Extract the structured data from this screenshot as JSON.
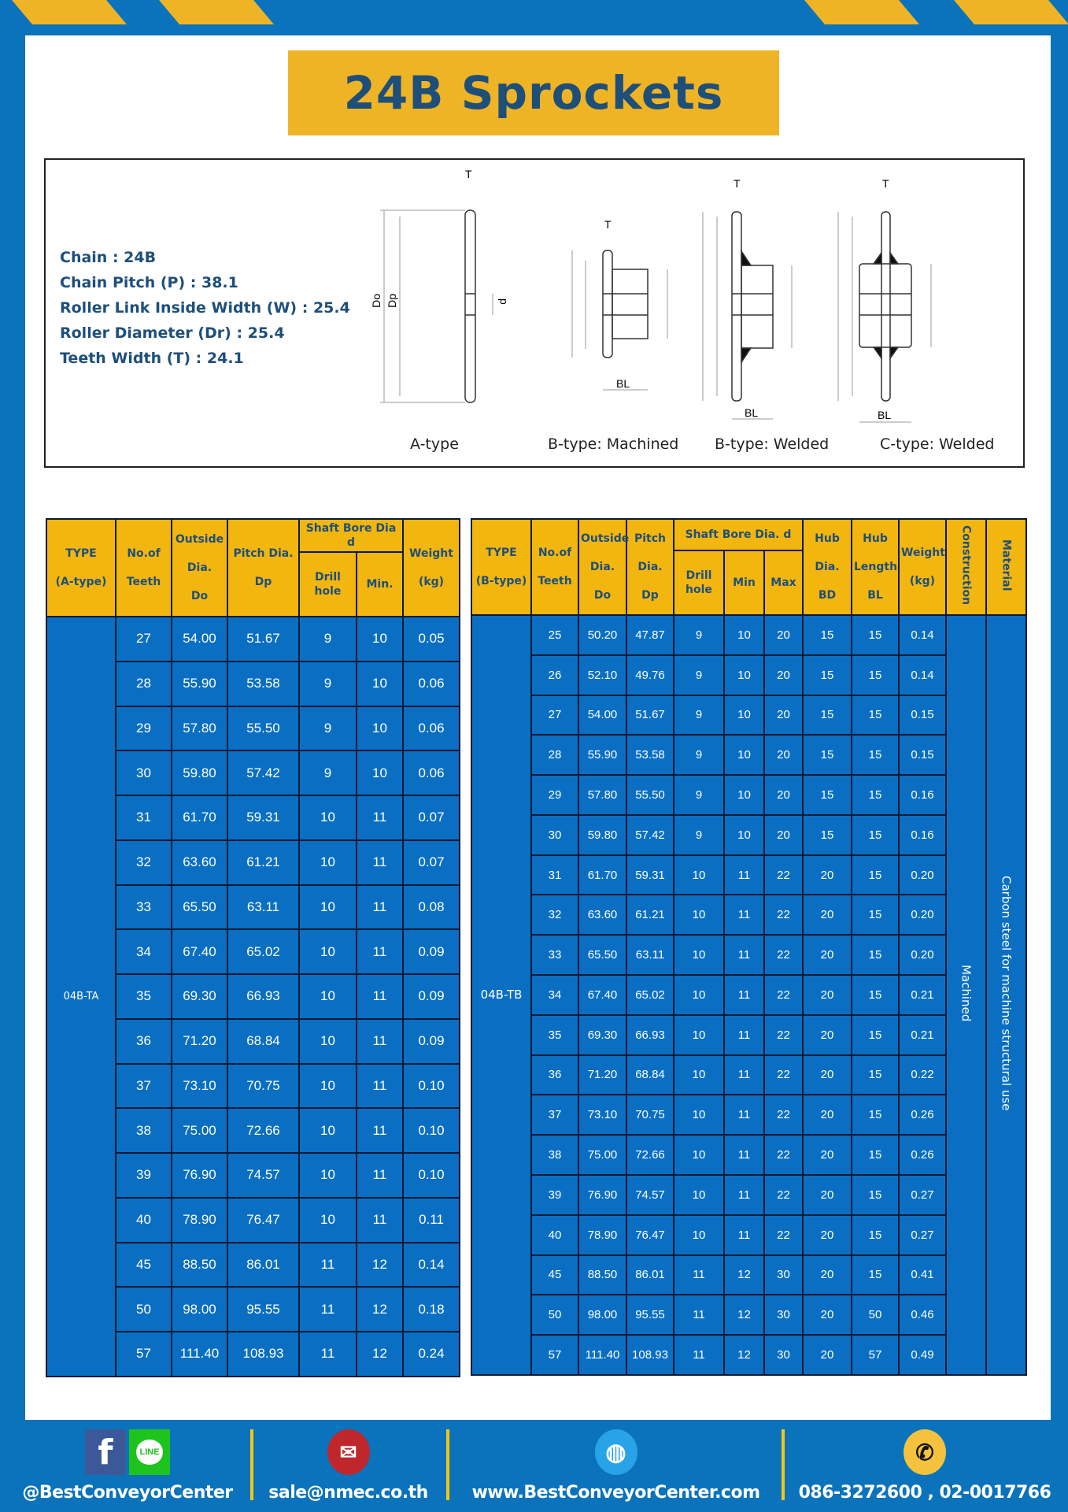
{
  "title": "24B Sprockets",
  "colors": {
    "frame_blue": "#0a73bb",
    "accent_yellow": "#efb425",
    "cell_blue": "#0a6fc2",
    "header_yellow": "#f2b60f",
    "text_navy": "#1e4f7a"
  },
  "specs": [
    "Chain  : 24B",
    "Chain Pitch (P)  :  38.1",
    "Roller Link Inside Width (W)  :  25.4",
    "Roller Diameter (Dr)  : 25.4",
    "Teeth Width (T)  :  24.1"
  ],
  "diagram": {
    "captions": [
      "A-type",
      "B-type: Machined",
      "B-type: Welded",
      "C-type: Welded"
    ],
    "labels": {
      "t": "T",
      "do": "Do",
      "dp": "Dp",
      "d": "d",
      "bd": "BD",
      "bl": "BL"
    }
  },
  "tableA": {
    "headers": {
      "type": "TYPE",
      "type_sub": "(A-type)",
      "teeth": "No.of",
      "teeth_sub": "Teeth",
      "outside": "Outside",
      "outside_sub": "Dia.",
      "outside_sub2": "Do",
      "pitch": "Pitch Dia.",
      "pitch_sub": "Dp",
      "bore": "Shaft Bore Dia d",
      "drill": "Drill hole",
      "min": "Min.",
      "weight": "Weight",
      "weight_sub": "(kg)"
    },
    "type_value": "04B-TA",
    "rows": [
      [
        "27",
        "54.00",
        "51.67",
        "9",
        "10",
        "0.05"
      ],
      [
        "28",
        "55.90",
        "53.58",
        "9",
        "10",
        "0.06"
      ],
      [
        "29",
        "57.80",
        "55.50",
        "9",
        "10",
        "0.06"
      ],
      [
        "30",
        "59.80",
        "57.42",
        "9",
        "10",
        "0.06"
      ],
      [
        "31",
        "61.70",
        "59.31",
        "10",
        "11",
        "0.07"
      ],
      [
        "32",
        "63.60",
        "61.21",
        "10",
        "11",
        "0.07"
      ],
      [
        "33",
        "65.50",
        "63.11",
        "10",
        "11",
        "0.08"
      ],
      [
        "34",
        "67.40",
        "65.02",
        "10",
        "11",
        "0.09"
      ],
      [
        "35",
        "69.30",
        "66.93",
        "10",
        "11",
        "0.09"
      ],
      [
        "36",
        "71.20",
        "68.84",
        "10",
        "11",
        "0.09"
      ],
      [
        "37",
        "73.10",
        "70.75",
        "10",
        "11",
        "0.10"
      ],
      [
        "38",
        "75.00",
        "72.66",
        "10",
        "11",
        "0.10"
      ],
      [
        "39",
        "76.90",
        "74.57",
        "10",
        "11",
        "0.10"
      ],
      [
        "40",
        "78.90",
        "76.47",
        "10",
        "11",
        "0.11"
      ],
      [
        "45",
        "88.50",
        "86.01",
        "11",
        "12",
        "0.14"
      ],
      [
        "50",
        "98.00",
        "95.55",
        "11",
        "12",
        "0.18"
      ],
      [
        "57",
        "111.40",
        "108.93",
        "11",
        "12",
        "0.24"
      ]
    ]
  },
  "tableB": {
    "headers": {
      "type": "TYPE",
      "type_sub": "(B-type)",
      "teeth": "No.of",
      "teeth_sub": "Teeth",
      "outside": "Outside",
      "outside_sub": "Dia.",
      "outside_sub2": "Do",
      "pitch": "Pitch",
      "pitch_sub": "Dia.",
      "pitch_sub2": "Dp",
      "bore": "Shaft Bore Dia. d",
      "drill": "Drill hole",
      "min": "Min",
      "max": "Max",
      "hub_dia": "Hub",
      "hub_dia_sub": "Dia.",
      "hub_dia_sub2": "BD",
      "hub_len": "Hub",
      "hub_len_sub": "Length",
      "hub_len_sub2": "BL",
      "weight": "Weight",
      "weight_sub": "(kg)",
      "construction": "Construction",
      "material": "Material"
    },
    "type_value": "04B-TB",
    "construction_value": "Machined",
    "material_value": "Carbon steel for machine structural use",
    "rows": [
      [
        "25",
        "50.20",
        "47.87",
        "9",
        "10",
        "20",
        "15",
        "15",
        "0.14"
      ],
      [
        "26",
        "52.10",
        "49.76",
        "9",
        "10",
        "20",
        "15",
        "15",
        "0.14"
      ],
      [
        "27",
        "54.00",
        "51.67",
        "9",
        "10",
        "20",
        "15",
        "15",
        "0.15"
      ],
      [
        "28",
        "55.90",
        "53.58",
        "9",
        "10",
        "20",
        "15",
        "15",
        "0.15"
      ],
      [
        "29",
        "57.80",
        "55.50",
        "9",
        "10",
        "20",
        "15",
        "15",
        "0.16"
      ],
      [
        "30",
        "59.80",
        "57.42",
        "9",
        "10",
        "20",
        "15",
        "15",
        "0.16"
      ],
      [
        "31",
        "61.70",
        "59.31",
        "10",
        "11",
        "22",
        "20",
        "15",
        "0.20"
      ],
      [
        "32",
        "63.60",
        "61.21",
        "10",
        "11",
        "22",
        "20",
        "15",
        "0.20"
      ],
      [
        "33",
        "65.50",
        "63.11",
        "10",
        "11",
        "22",
        "20",
        "15",
        "0.20"
      ],
      [
        "34",
        "67.40",
        "65.02",
        "10",
        "11",
        "22",
        "20",
        "15",
        "0.21"
      ],
      [
        "35",
        "69.30",
        "66.93",
        "10",
        "11",
        "22",
        "20",
        "15",
        "0.21"
      ],
      [
        "36",
        "71.20",
        "68.84",
        "10",
        "11",
        "22",
        "20",
        "15",
        "0.22"
      ],
      [
        "37",
        "73.10",
        "70.75",
        "10",
        "11",
        "22",
        "20",
        "15",
        "0.26"
      ],
      [
        "38",
        "75.00",
        "72.66",
        "10",
        "11",
        "22",
        "20",
        "15",
        "0.26"
      ],
      [
        "39",
        "76.90",
        "74.57",
        "10",
        "11",
        "22",
        "20",
        "15",
        "0.27"
      ],
      [
        "40",
        "78.90",
        "76.47",
        "10",
        "11",
        "22",
        "20",
        "15",
        "0.27"
      ],
      [
        "45",
        "88.50",
        "86.01",
        "11",
        "12",
        "30",
        "20",
        "15",
        "0.41"
      ],
      [
        "50",
        "98.00",
        "95.55",
        "11",
        "12",
        "30",
        "20",
        "50",
        "0.46"
      ],
      [
        "57",
        "111.40",
        "108.93",
        "11",
        "12",
        "30",
        "20",
        "57",
        "0.49"
      ]
    ]
  },
  "footer": {
    "social": "@BestConveyorCenter",
    "line_label": "LINE",
    "email": "sale@nmec.co.th",
    "website": "www.BestConveyorCenter.com",
    "phone": "086-3272600 , 02-0017766"
  }
}
